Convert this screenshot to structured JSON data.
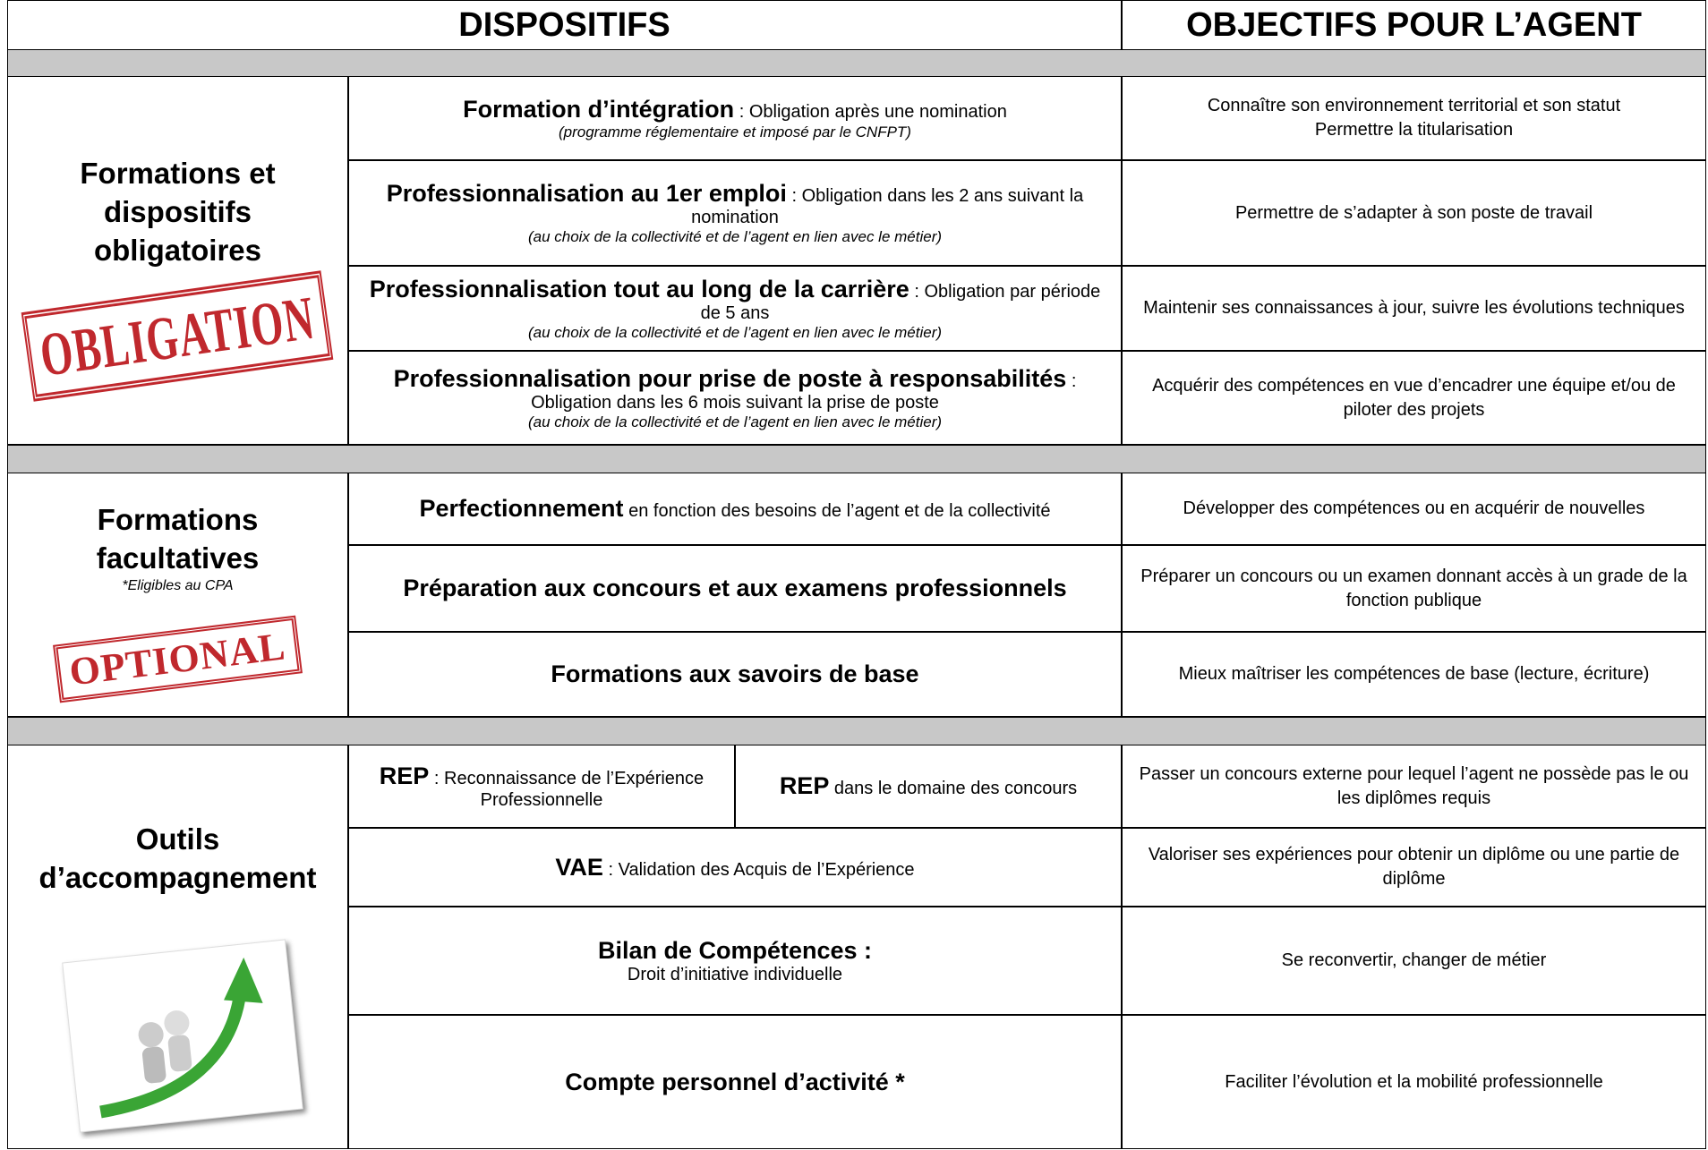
{
  "header": {
    "col1": "DISPOSITIFS",
    "col2": "OBJECTIFS POUR L’AGENT"
  },
  "sections": [
    {
      "title": "Formations et dispositifs obligatoires",
      "stamp": "OBLIGATION",
      "rows": [
        {
          "cells": [
            {
              "bold": "Formation d’intégration",
              "text": " : Obligation après une nomination",
              "italic": "(programme réglementaire et imposé par le CNFPT)"
            }
          ],
          "objective": "Connaître son environnement territorial et son statut\nPermettre la titularisation"
        },
        {
          "cells": [
            {
              "bold": "Professionnalisation au 1er emploi",
              "text": " : Obligation dans les 2 ans suivant la nomination",
              "italic": "(au choix de la collectivité et de l’agent en lien avec le métier)"
            }
          ],
          "objective": "Permettre de s’adapter à son poste de travail"
        },
        {
          "cells": [
            {
              "bold": "Professionnalisation tout au long de la carrière",
              "text": " : Obligation par période de 5 ans",
              "italic": "(au choix de la collectivité et de l’agent en lien avec le métier)"
            }
          ],
          "objective": "Maintenir ses connaissances à jour, suivre les évolutions techniques"
        },
        {
          "cells": [
            {
              "bold": "Professionnalisation pour prise de poste à responsabilités",
              "text": " : Obligation dans les 6 mois suivant la prise de poste",
              "italic": "(au choix de la collectivité et de l’agent en lien avec le métier)"
            }
          ],
          "objective": "Acquérir des compétences en vue d’encadrer une équipe et/ou de piloter des projets"
        }
      ]
    },
    {
      "title": "Formations facultatives",
      "note": "*Eligibles au CPA",
      "stamp": "OPTIONAL",
      "rows": [
        {
          "cells": [
            {
              "bold": "Perfectionnement",
              "text": " en fonction des besoins de l’agent et de la collectivité"
            }
          ],
          "objective": "Développer des compétences ou en acquérir de nouvelles"
        },
        {
          "cells": [
            {
              "bold": "Préparation aux concours et aux examens professionnels"
            }
          ],
          "objective": "Préparer un concours ou un examen donnant accès à un grade de la fonction publique"
        },
        {
          "cells": [
            {
              "bold": "Formations aux savoirs de base"
            }
          ],
          "objective": "Mieux maîtriser les compétences de base (lecture, écriture)"
        }
      ]
    },
    {
      "title": "Outils d’accompagnement",
      "rows": [
        {
          "cells": [
            {
              "bold": "REP",
              "text": " : Reconnaissance de l’Expérience Professionnelle"
            },
            {
              "bold": "REP",
              "text": " dans le domaine des concours"
            }
          ],
          "objective": "Passer un concours externe pour lequel l’agent ne possède pas le ou les diplômes requis"
        },
        {
          "cells": [
            {
              "bold": "VAE",
              "text": " : Validation des Acquis de l’Expérience"
            }
          ],
          "objective": "Valoriser ses expériences pour obtenir un diplôme ou une partie de diplôme"
        },
        {
          "cells": [
            {
              "bold": "Bilan de Compétences :",
              "text": "Droit d’initiative individuelle",
              "block": true
            }
          ],
          "objective": "Se reconvertir, changer de métier"
        },
        {
          "cells": [
            {
              "bold": "Compte personnel d’activité *"
            }
          ],
          "objective": "Faciliter l’évolution et la mobilité professionnelle"
        }
      ]
    }
  ]
}
